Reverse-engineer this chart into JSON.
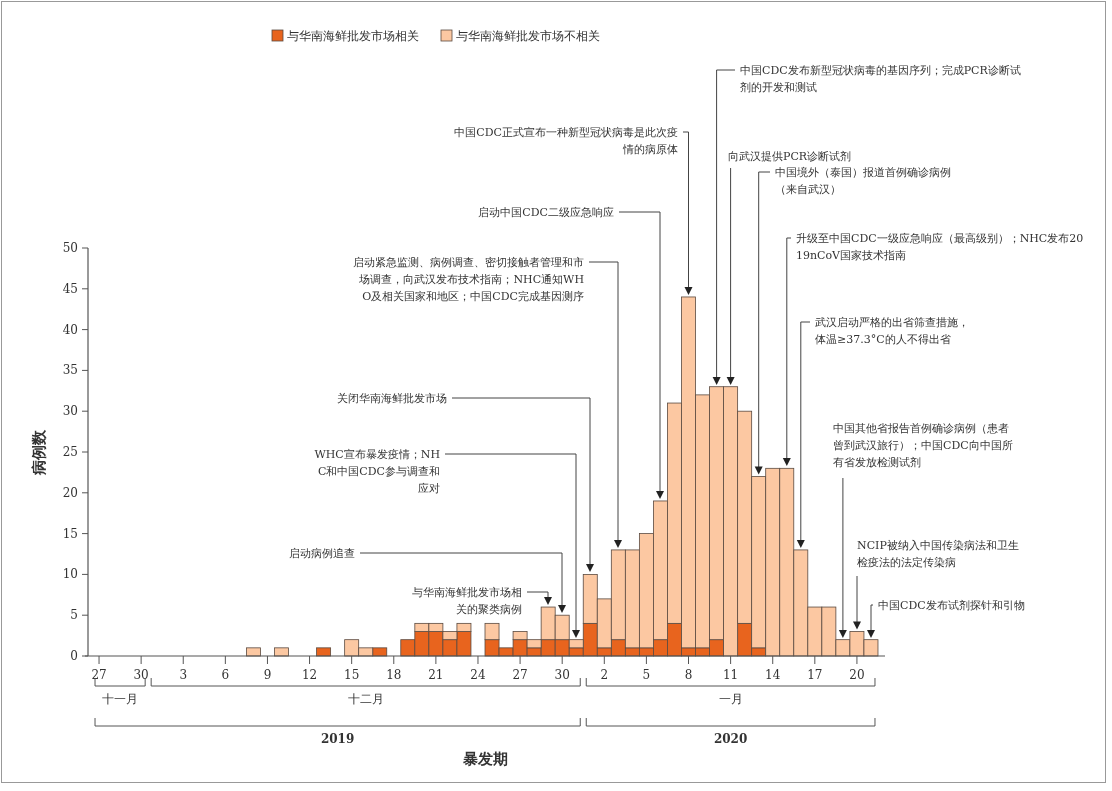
{
  "chart_data": {
    "type": "bar",
    "stacked": true,
    "legend": "top",
    "xlabel": "暴发期",
    "ylabel": "病例数",
    "x": [
      "2019-11-27",
      "2019-11-28",
      "2019-11-29",
      "2019-11-30",
      "2019-12-01",
      "2019-12-02",
      "2019-12-03",
      "2019-12-04",
      "2019-12-05",
      "2019-12-06",
      "2019-12-07",
      "2019-12-08",
      "2019-12-09",
      "2019-12-10",
      "2019-12-11",
      "2019-12-12",
      "2019-12-13",
      "2019-12-14",
      "2019-12-15",
      "2019-12-16",
      "2019-12-17",
      "2019-12-18",
      "2019-12-19",
      "2019-12-20",
      "2019-12-21",
      "2019-12-22",
      "2019-12-23",
      "2019-12-24",
      "2019-12-25",
      "2019-12-26",
      "2019-12-27",
      "2019-12-28",
      "2019-12-29",
      "2019-12-30",
      "2019-12-31",
      "2020-01-01",
      "2020-01-02",
      "2020-01-03",
      "2020-01-04",
      "2020-01-05",
      "2020-01-06",
      "2020-01-07",
      "2020-01-08",
      "2020-01-09",
      "2020-01-10",
      "2020-01-11",
      "2020-01-12",
      "2020-01-13",
      "2020-01-14",
      "2020-01-15",
      "2020-01-16",
      "2020-01-17",
      "2020-01-18",
      "2020-01-19",
      "2020-01-20",
      "2020-01-21"
    ],
    "series": [
      {
        "name": "与华南海鲜批发市场相关",
        "color": "#e8641e",
        "values": [
          0,
          0,
          0,
          0,
          0,
          0,
          0,
          0,
          0,
          0,
          0,
          0,
          0,
          0,
          0,
          0,
          1,
          0,
          0,
          0,
          1,
          0,
          2,
          3,
          3,
          2,
          3,
          0,
          2,
          1,
          2,
          1,
          2,
          2,
          1,
          4,
          1,
          2,
          1,
          1,
          2,
          4,
          1,
          1,
          2,
          0,
          4,
          1,
          0,
          0,
          0,
          0,
          0,
          0,
          0,
          0
        ]
      },
      {
        "name": "与华南海鲜批发市场不相关",
        "color": "#fcc8a2",
        "values": [
          0,
          0,
          0,
          0,
          0,
          0,
          0,
          0,
          0,
          0,
          0,
          1,
          0,
          1,
          0,
          0,
          0,
          0,
          2,
          1,
          0,
          0,
          0,
          1,
          1,
          1,
          1,
          0,
          2,
          0,
          1,
          1,
          4,
          3,
          1,
          6,
          6,
          11,
          12,
          14,
          17,
          27,
          43,
          31,
          31,
          33,
          26,
          21,
          23,
          23,
          13,
          6,
          6,
          2,
          3,
          2
        ]
      }
    ],
    "xlim": [
      "2019-11-26",
      "2020-01-22"
    ],
    "xticks": [
      {
        "value": "2019-11-27",
        "label": "27"
      },
      {
        "value": "2019-11-30",
        "label": "30"
      },
      {
        "value": "2019-12-03",
        "label": "3"
      },
      {
        "value": "2019-12-06",
        "label": "6"
      },
      {
        "value": "2019-12-09",
        "label": "9"
      },
      {
        "value": "2019-12-12",
        "label": "12"
      },
      {
        "value": "2019-12-15",
        "label": "15"
      },
      {
        "value": "2019-12-18",
        "label": "18"
      },
      {
        "value": "2019-12-21",
        "label": "21"
      },
      {
        "value": "2019-12-24",
        "label": "24"
      },
      {
        "value": "2019-12-27",
        "label": "27"
      },
      {
        "value": "2019-12-30",
        "label": "30"
      },
      {
        "value": "2020-01-02",
        "label": "2"
      },
      {
        "value": "2020-01-05",
        "label": "5"
      },
      {
        "value": "2020-01-08",
        "label": "8"
      },
      {
        "value": "2020-01-11",
        "label": "11"
      },
      {
        "value": "2020-01-14",
        "label": "14"
      },
      {
        "value": "2020-01-17",
        "label": "17"
      },
      {
        "value": "2020-01-20",
        "label": "20"
      }
    ],
    "ylim": [
      0,
      50
    ],
    "yticks": [
      0,
      5,
      10,
      15,
      20,
      25,
      30,
      35,
      40,
      45,
      50
    ],
    "annotations": [
      "与华南海鲜批发市场相关的聚类病例",
      "启动病例追查",
      "WHC宣布暴发疫情；NHC和中国CDC参与调查和应对",
      "关闭华南海鲜批发市场",
      "启动紧急监测、病例调查、密切接触者管理和市场调查，向武汉发布技术指南；NHC通知WHO及相关国家和地区；中国CDC完成基因测序",
      "启动中国CDC二级应急响应",
      "中国CDC正式宣布一种新型冠状病毒是此次疫情的病原体",
      "中国CDC发布新型冠状病毒的基因序列；完成PCR诊断试剂的开发和测试",
      "向武汉提供PCR诊断试剂",
      "中国境外（泰国）报道首例确诊病例（来自武汉）",
      "升级至中国CDC一级应急响应（最高级别）；NHC发布2019nCoV国家技术指南",
      "武汉启动严格的出省筛查措施，体温≥37.3°C的人不得出省",
      "中国其他省报告首例确诊病例（患者曾到武汉旅行）；中国CDC向中国所有省发放检测试剂",
      "NCIP被纳入中国传染病法和卫生检疫法的法定传染病",
      "中国CDC发布试剂探针和引物",
      "十一月",
      "十二月",
      "一月",
      "2019",
      "2020"
    ]
  }
}
